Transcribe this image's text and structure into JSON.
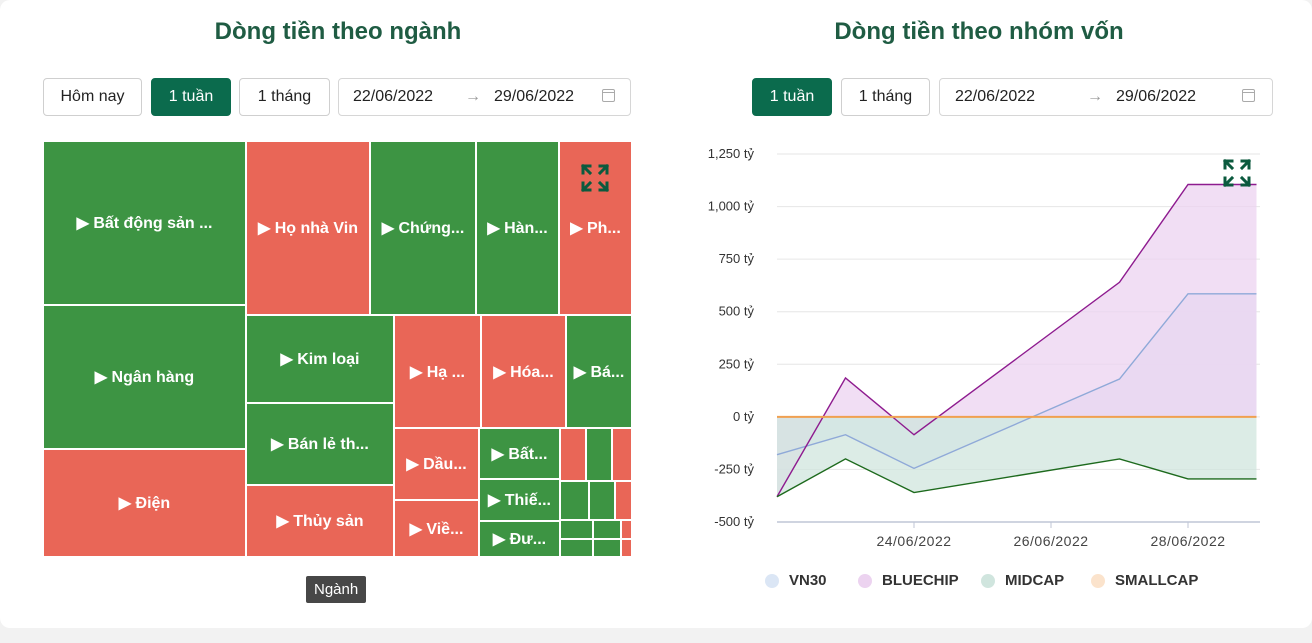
{
  "left": {
    "title": "Dòng tiền theo ngành",
    "buttons": {
      "today": "Hôm nay",
      "week": "1 tuần",
      "month": "1 tháng"
    },
    "date_start": "22/06/2022",
    "date_end": "29/06/2022",
    "tooltip": "Ngành",
    "icons": {
      "expand": "expand-icon",
      "calendar": "calendar-icon",
      "arrow": "arrow-right-icon"
    },
    "colors": {
      "positive": "#3d9443",
      "negative": "#e96657"
    },
    "treemap": [
      {
        "label": "▶ Bất động sản ...",
        "sign": "positive"
      },
      {
        "label": "▶ Ngân hàng",
        "sign": "positive"
      },
      {
        "label": "▶ Điện",
        "sign": "negative"
      },
      {
        "label": "▶ Họ nhà Vin",
        "sign": "negative"
      },
      {
        "label": "▶ Chứng...",
        "sign": "positive"
      },
      {
        "label": "▶ Hàn...",
        "sign": "positive"
      },
      {
        "label": "▶ Ph...",
        "sign": "negative"
      },
      {
        "label": "▶ Kim loại",
        "sign": "positive"
      },
      {
        "label": "▶ Hạ ...",
        "sign": "negative"
      },
      {
        "label": "▶ Hóa...",
        "sign": "negative"
      },
      {
        "label": "▶ Bá...",
        "sign": "positive"
      },
      {
        "label": "▶ Bán lẻ th...",
        "sign": "positive"
      },
      {
        "label": "▶ Dầu...",
        "sign": "negative"
      },
      {
        "label": "▶ Bất...",
        "sign": "positive"
      },
      {
        "label": "▶ Thiế...",
        "sign": "positive"
      },
      {
        "label": "▶ Thủy sản",
        "sign": "negative"
      },
      {
        "label": "▶ Viề...",
        "sign": "negative"
      },
      {
        "label": "▶ Đư...",
        "sign": "positive"
      },
      {
        "label": "",
        "sign": "negative"
      },
      {
        "label": "",
        "sign": "positive"
      },
      {
        "label": "",
        "sign": "negative"
      },
      {
        "label": "",
        "sign": "positive"
      },
      {
        "label": "",
        "sign": "positive"
      },
      {
        "label": "",
        "sign": "negative"
      },
      {
        "label": "",
        "sign": "positive"
      },
      {
        "label": "",
        "sign": "positive"
      },
      {
        "label": "",
        "sign": "negative"
      },
      {
        "label": "",
        "sign": "positive"
      },
      {
        "label": "",
        "sign": "positive"
      },
      {
        "label": "",
        "sign": "negative"
      }
    ]
  },
  "right": {
    "title": "Dòng tiền theo nhóm vốn",
    "buttons": {
      "week": "1 tuần",
      "month": "1 tháng"
    },
    "date_start": "22/06/2022",
    "date_end": "29/06/2022"
  },
  "chart_data": {
    "type": "area",
    "x": [
      "22/06/2022",
      "23/06/2022",
      "24/06/2022",
      "27/06/2022",
      "28/06/2022",
      "29/06/2022"
    ],
    "x_tick_labels": [
      "24/06/2022",
      "26/06/2022",
      "28/06/2022"
    ],
    "y_tick_labels": [
      "1,250 tỷ",
      "1,000 tỷ",
      "750 tỷ",
      "500 tỷ",
      "250 tỷ",
      "0 tỷ",
      "-250 tỷ",
      "-500 tỷ"
    ],
    "ylim": [
      -500,
      1250
    ],
    "grid": true,
    "legend_position": "bottom",
    "series": [
      {
        "name": "VN30",
        "color": "#8fa9d8",
        "fill": "#dbe6f5",
        "values": [
          -180,
          -85,
          -245,
          180,
          585,
          585
        ]
      },
      {
        "name": "BLUECHIP",
        "color": "#8e1b8f",
        "fill": "#ecd3f0",
        "values": [
          -380,
          185,
          -85,
          640,
          1105,
          1105
        ]
      },
      {
        "name": "MIDCAP",
        "color": "#1d6a1d",
        "fill": "#d0e5de",
        "values": [
          -380,
          -200,
          -360,
          -200,
          -295,
          -295
        ]
      },
      {
        "name": "SMALLCAP",
        "color": "#f0a050",
        "fill": "#fbe3cc",
        "values": [
          0,
          0,
          0,
          0,
          0,
          0
        ]
      }
    ]
  }
}
